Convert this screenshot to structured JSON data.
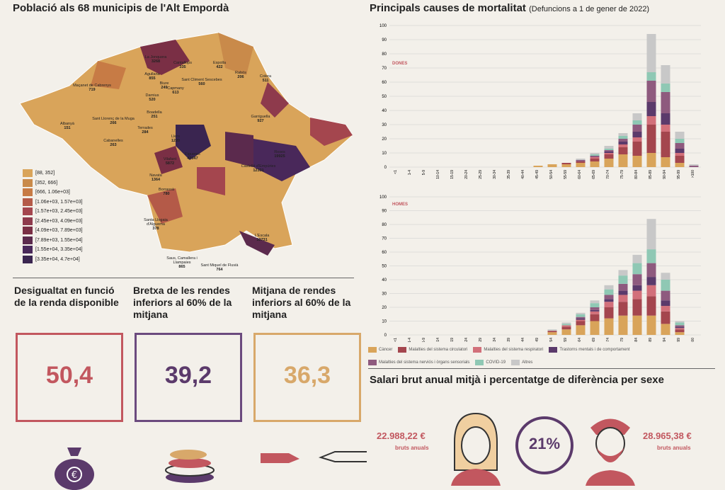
{
  "map": {
    "title": "Població als 68 municipis de l'Alt Empordà",
    "legend": [
      "[88, 352]",
      "[352, 666]",
      "[666, 1.06e+03]",
      "[1.06e+03, 1.57e+03]",
      "[1.57e+03, 2.45e+03]",
      "[2.45e+03, 4.09e+03]",
      "[4.09e+03, 7.89e+03]",
      "[7.89e+03, 1.55e+04]",
      "[1.55e+04, 3.35e+04]",
      "[3.35e+04, 4.7e+04]"
    ],
    "legend_colors": [
      "#d9a45a",
      "#c98a4a",
      "#c77b45",
      "#b45a48",
      "#a4464e",
      "#8e3a4c",
      "#7a2f45",
      "#5b2a4d",
      "#49285a",
      "#3a2550"
    ],
    "labels": [
      {
        "name": "Maçanet de Cabrenys",
        "v": "719"
      },
      {
        "name": "La Jonquera",
        "v": "3268"
      },
      {
        "name": "Cantallops",
        "v": "335"
      },
      {
        "name": "Espolla",
        "v": "422"
      },
      {
        "name": "Agullana",
        "v": "855"
      },
      {
        "name": "Capmany",
        "v": "613"
      },
      {
        "name": "Sant Climent Sescebes",
        "v": "560"
      },
      {
        "name": "Rabós",
        "v": "206"
      },
      {
        "name": "Colera",
        "v": "511"
      },
      {
        "name": "Darnius",
        "v": "520"
      },
      {
        "name": "Biure",
        "v": "249"
      },
      {
        "name": "Garriguella",
        "v": "927"
      },
      {
        "name": "Albanyà",
        "v": "151"
      },
      {
        "name": "Sant Llorenç de la Muga",
        "v": "266"
      },
      {
        "name": "Boadella",
        "v": "251"
      },
      {
        "name": "Terrades",
        "v": "284"
      },
      {
        "name": "Cabanelles",
        "v": "263"
      },
      {
        "name": "Llers",
        "v": "1220"
      },
      {
        "name": "Figueres",
        "v": "47047"
      },
      {
        "name": "Vilafant",
        "v": "5872"
      },
      {
        "name": "Roses",
        "v": "19925"
      },
      {
        "name": "Castelló d'Empúries",
        "v": "12331"
      },
      {
        "name": "Navata",
        "v": "1364"
      },
      {
        "name": "Borrassà",
        "v": "780"
      },
      {
        "name": "L'Escala",
        "v": "10731"
      },
      {
        "name": "Santa Llogaia d'Àlguema",
        "v": "378"
      },
      {
        "name": "Saus, Camallera i Llampaies",
        "v": "865"
      },
      {
        "name": "Sant Miquel de Fluvià",
        "v": "764"
      }
    ]
  },
  "inequality": [
    {
      "title": "Desigualtat en funció de la renda disponible",
      "value": "50,4",
      "color": "#c2575f",
      "border": "#c2575f"
    },
    {
      "title": "Bretxa de les rendes inferiors al 60% de la mitjana",
      "value": "39,2",
      "color": "#5b3a6b",
      "border": "#6b4a7e"
    },
    {
      "title": "Mitjana de rendes inferiors al 60% de la mitjana",
      "value": "36,3",
      "color": "#d8a86a",
      "border": "#d8a86a"
    }
  ],
  "chart_data": [
    {
      "type": "bar",
      "title": "Principals causes de mortalitat",
      "subtitle": "(Defuncions a 1 de gener de 2022)",
      "panel": "DONES",
      "categories": [
        "<1",
        "1-4",
        "5-9",
        "10-14",
        "15-19",
        "20-24",
        "25-29",
        "30-34",
        "35-39",
        "40-44",
        "45-49",
        "50-54",
        "55-59",
        "60-64",
        "65-69",
        "70-74",
        "75-79",
        "80-84",
        "85-89",
        "90-94",
        "95-99",
        ">100"
      ],
      "ylim": [
        0,
        100
      ],
      "yticks": [
        0,
        10,
        20,
        30,
        40,
        50,
        60,
        70,
        80,
        90,
        100
      ],
      "series": [
        {
          "name": "Càncer",
          "values": [
            0,
            0,
            0,
            0,
            0,
            0,
            0,
            0,
            0,
            0,
            1,
            2,
            2,
            3,
            4,
            6,
            9,
            8,
            10,
            7,
            3,
            0
          ]
        },
        {
          "name": "Malalties del sistema circulatori",
          "values": [
            0,
            0,
            0,
            0,
            0,
            0,
            0,
            0,
            0,
            0,
            0,
            0,
            1,
            1,
            2,
            3,
            5,
            10,
            20,
            18,
            5,
            0
          ]
        },
        {
          "name": "Malalties del sistema respiratori",
          "values": [
            0,
            0,
            0,
            0,
            0,
            0,
            0,
            0,
            0,
            0,
            0,
            0,
            0,
            0,
            1,
            1,
            2,
            3,
            6,
            5,
            2,
            0
          ]
        },
        {
          "name": "Trastorns mentals i de comportament",
          "values": [
            0,
            0,
            0,
            0,
            0,
            0,
            0,
            0,
            0,
            0,
            0,
            0,
            0,
            0,
            0,
            1,
            2,
            4,
            10,
            8,
            3,
            0
          ]
        },
        {
          "name": "Malalties del sistema nerviós i òrgans sensorials",
          "values": [
            0,
            0,
            0,
            0,
            0,
            0,
            0,
            0,
            0,
            0,
            0,
            0,
            0,
            1,
            1,
            1,
            2,
            5,
            15,
            15,
            4,
            1
          ]
        },
        {
          "name": "COVID-19",
          "values": [
            0,
            0,
            0,
            0,
            0,
            0,
            0,
            0,
            0,
            0,
            0,
            0,
            0,
            0,
            1,
            1,
            2,
            3,
            6,
            6,
            3,
            0
          ]
        },
        {
          "name": "Altres",
          "values": [
            0,
            0,
            0,
            0,
            0,
            0,
            0,
            0,
            0,
            0,
            0,
            0,
            0,
            1,
            1,
            2,
            2,
            5,
            27,
            13,
            5,
            1
          ]
        }
      ]
    },
    {
      "type": "bar",
      "panel": "HOMES",
      "categories": [
        "<1",
        "1-4",
        "5-9",
        "10-14",
        "15-19",
        "20-24",
        "25-29",
        "30-34",
        "35-39",
        "40-44",
        "45-49",
        "50-54",
        "55-59",
        "60-64",
        "65-69",
        "70-74",
        "75-79",
        "80-84",
        "85-89",
        "90-94",
        "95-99",
        ">100"
      ],
      "ylim": [
        0,
        100
      ],
      "yticks": [
        0,
        10,
        20,
        30,
        40,
        50,
        60,
        70,
        80,
        90,
        100
      ],
      "series": [
        {
          "name": "Càncer",
          "values": [
            0,
            0,
            0,
            0,
            0,
            0,
            0,
            0,
            0,
            0,
            0,
            2,
            4,
            7,
            10,
            12,
            14,
            14,
            14,
            8,
            2,
            0
          ]
        },
        {
          "name": "Malalties del sistema circulatori",
          "values": [
            0,
            0,
            0,
            0,
            0,
            0,
            0,
            0,
            0,
            0,
            0,
            1,
            2,
            3,
            5,
            8,
            10,
            12,
            14,
            9,
            2,
            0
          ]
        },
        {
          "name": "Malalties del sistema respiratori",
          "values": [
            0,
            0,
            0,
            0,
            0,
            0,
            0,
            0,
            0,
            0,
            0,
            0,
            1,
            1,
            2,
            4,
            5,
            6,
            8,
            4,
            1,
            0
          ]
        },
        {
          "name": "Trastorns mentals i de comportament",
          "values": [
            0,
            0,
            0,
            0,
            0,
            0,
            0,
            0,
            0,
            0,
            0,
            0,
            0,
            1,
            1,
            2,
            3,
            4,
            6,
            4,
            1,
            0
          ]
        },
        {
          "name": "Malalties del sistema nerviós i òrgans sensorials",
          "values": [
            0,
            0,
            0,
            0,
            0,
            0,
            0,
            0,
            0,
            0,
            0,
            0,
            0,
            1,
            2,
            3,
            5,
            8,
            10,
            7,
            1,
            0
          ]
        },
        {
          "name": "COVID-19",
          "values": [
            0,
            0,
            0,
            0,
            0,
            0,
            0,
            0,
            0,
            0,
            0,
            0,
            1,
            2,
            3,
            4,
            6,
            8,
            10,
            8,
            2,
            0
          ]
        },
        {
          "name": "Altres",
          "values": [
            0,
            0,
            0,
            0,
            0,
            0,
            0,
            0,
            0,
            0,
            0,
            1,
            1,
            1,
            2,
            3,
            4,
            6,
            22,
            5,
            1,
            0
          ]
        }
      ]
    }
  ],
  "series_colors": [
    "#d9a45a",
    "#a4464e",
    "#d2707a",
    "#5b3a6b",
    "#8e5a7e",
    "#8fc8b4",
    "#c8c8c8"
  ],
  "salary": {
    "title": "Salari brut anual mitjà i percentatge de diferència per sexe",
    "women_value": "22.988,22 €",
    "women_sub": "bruts anuals",
    "gap": "21%",
    "men_value": "28.965,38 €",
    "men_sub": "bruts anuals"
  }
}
